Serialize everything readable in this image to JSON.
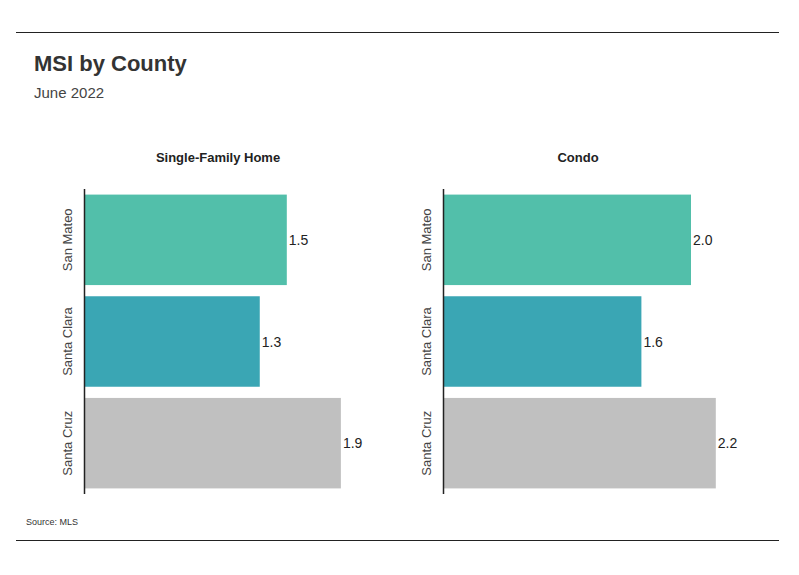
{
  "title": "MSI by County",
  "subtitle": "June 2022",
  "source": "Source: MLS",
  "chart_data": [
    {
      "type": "bar",
      "orientation": "horizontal",
      "title": "Single-Family Home",
      "categories": [
        "San Mateo",
        "Santa Clara",
        "Santa Cruz"
      ],
      "values": [
        1.5,
        1.3,
        1.9
      ],
      "colors": [
        "#52bfaa",
        "#3aa6b4",
        "#c0c0c0"
      ],
      "xlim": [
        0,
        2.5
      ],
      "data_labels": true,
      "tick_labels": "y",
      "grid": false
    },
    {
      "type": "bar",
      "orientation": "horizontal",
      "title": "Condo",
      "categories": [
        "San Mateo",
        "Santa Clara",
        "Santa Cruz"
      ],
      "values": [
        2.0,
        1.6,
        2.2
      ],
      "value_labels": [
        "2.0",
        "1.6",
        "2.2"
      ],
      "colors": [
        "#52bfaa",
        "#3aa6b4",
        "#c0c0c0"
      ],
      "xlim": [
        0,
        2.5
      ],
      "data_labels": true,
      "tick_labels": "y",
      "grid": false
    }
  ]
}
